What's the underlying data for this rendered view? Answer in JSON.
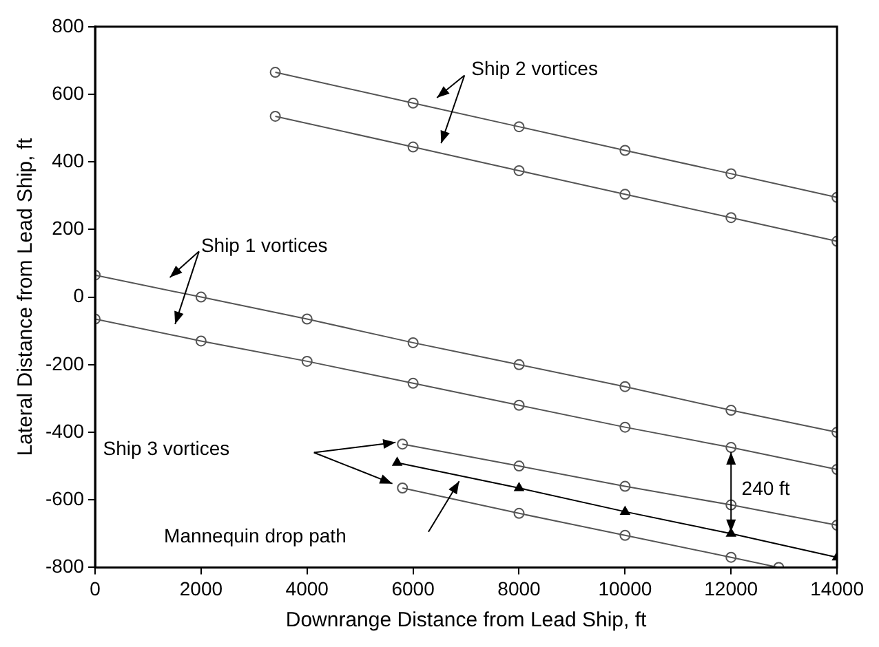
{
  "chart_data": {
    "type": "line",
    "xlabel": "Downrange Distance from Lead Ship, ft",
    "ylabel": "Lateral Distance from Lead Ship, ft",
    "xlim": [
      0,
      14000
    ],
    "xticks": [
      0,
      2000,
      4000,
      6000,
      8000,
      10000,
      12000,
      14000
    ],
    "ylim": [
      -800,
      800
    ],
    "yticks": [
      -800,
      -600,
      -400,
      -200,
      0,
      200,
      400,
      600,
      800
    ],
    "grid": false,
    "legend": false,
    "series": [
      {
        "color": "#555555",
        "marker": "circle",
        "x": [
          3400,
          6000,
          8000,
          10000,
          12000,
          14000
        ],
        "values": [
          665,
          574,
          504,
          434,
          365,
          295
        ]
      },
      {
        "color": "#555555",
        "marker": "circle",
        "x": [
          3400,
          6000,
          8000,
          10000,
          12000,
          14000
        ],
        "values": [
          535,
          444,
          374,
          304,
          235,
          165
        ]
      },
      {
        "color": "#555555",
        "marker": "circle",
        "x": [
          0,
          2000,
          4000,
          6000,
          8000,
          10000,
          12000,
          14000
        ],
        "values": [
          65,
          0,
          -65,
          -135,
          -200,
          -265,
          -335,
          -400
        ]
      },
      {
        "color": "#555555",
        "marker": "circle",
        "x": [
          0,
          2000,
          4000,
          6000,
          8000,
          10000,
          12000,
          14000
        ],
        "values": [
          -65,
          -130,
          -190,
          -255,
          -320,
          -385,
          -445,
          -510
        ]
      },
      {
        "color": "#555555",
        "marker": "circle",
        "x": [
          5800,
          8000,
          10000,
          12000,
          14000
        ],
        "values": [
          -435,
          -500,
          -560,
          -615,
          -675
        ]
      },
      {
        "color": "#555555",
        "marker": "circle",
        "x": [
          5800,
          8000,
          10000,
          12000,
          12900
        ],
        "values": [
          -565,
          -640,
          -705,
          -770,
          -800
        ]
      },
      {
        "color": "#000000",
        "marker": "triangle",
        "x": [
          5700,
          8000,
          10000,
          12000,
          14000
        ],
        "values": [
          -490,
          -565,
          -635,
          -700,
          -770
        ]
      }
    ],
    "annotations": [
      "Ship 2 vortices",
      "Ship 1 vortices",
      "Ship 3 vortices",
      "Mannequin drop path",
      "240 ft"
    ]
  }
}
